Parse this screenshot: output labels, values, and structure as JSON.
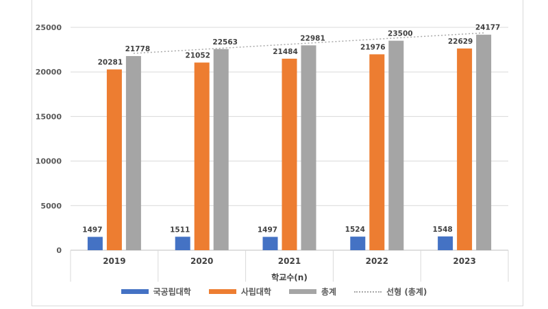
{
  "chart_data": {
    "type": "bar",
    "title": "",
    "xlabel": "학교수(n)",
    "ylabel": "",
    "categories": [
      "2019",
      "2020",
      "2021",
      "2022",
      "2023"
    ],
    "ylim": [
      0,
      25000
    ],
    "yticks": [
      "0",
      "5000",
      "10000",
      "15000",
      "20000",
      "25000"
    ],
    "grid": true,
    "legend_position": "bottom",
    "series": [
      {
        "name": "국공립대학",
        "color": "#4472c4",
        "values": [
          1497,
          1511,
          1497,
          1524,
          1548
        ]
      },
      {
        "name": "사립대학",
        "color": "#ed7d31",
        "values": [
          20281,
          21052,
          21484,
          21976,
          22629
        ]
      },
      {
        "name": "총계",
        "color": "#a5a5a5",
        "values": [
          21778,
          22563,
          22981,
          23500,
          24177
        ]
      }
    ],
    "trendline": {
      "name": "선형 (총계)",
      "of_series": "총계",
      "color": "#a6a6a6"
    }
  }
}
